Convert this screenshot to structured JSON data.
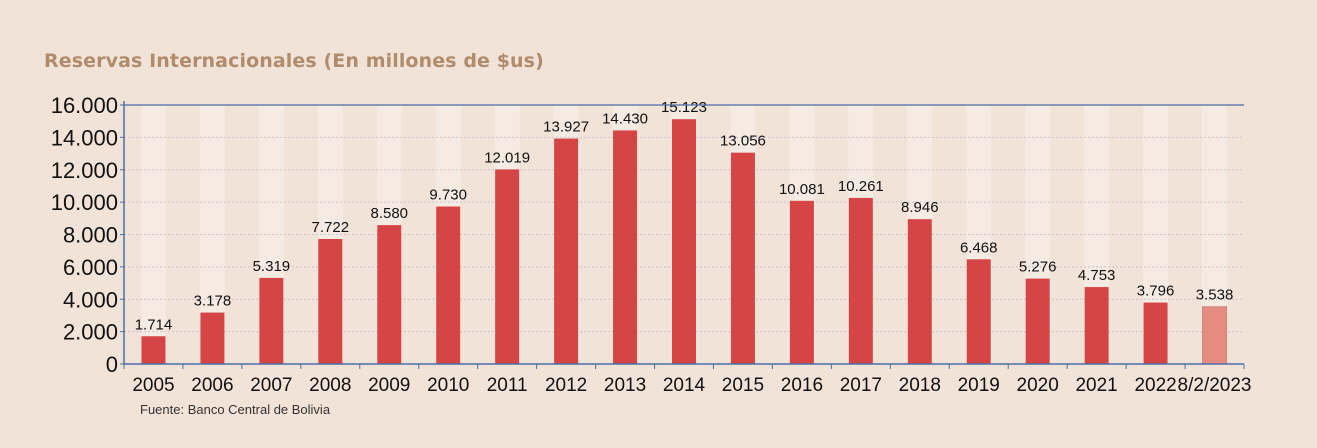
{
  "header": {
    "title": "Reservas Internacionales (En millones de $us)"
  },
  "footer": {
    "source": "Fuente: Banco Central de Bolivia"
  },
  "colors": {
    "bar": "#d64545",
    "bar_highlight": "#e48c80",
    "column_band": "#f5ebe3",
    "gridline": "#c9c3ce",
    "axis": "#4a6fa5",
    "background": "#f2e3d8",
    "title": "#b08c6c"
  },
  "chart_data": {
    "type": "bar",
    "title": "Reservas Internacionales (En millones de $us)",
    "xlabel": "",
    "ylabel": "",
    "categories": [
      "2005",
      "2006",
      "2007",
      "2008",
      "2009",
      "2010",
      "2011",
      "2012",
      "2013",
      "2014",
      "2015",
      "2016",
      "2017",
      "2018",
      "2019",
      "2020",
      "2021",
      "2022",
      "8/2/2023"
    ],
    "values": [
      1714,
      3178,
      5319,
      7722,
      8580,
      9730,
      12019,
      13927,
      14430,
      15123,
      13056,
      10081,
      10261,
      8946,
      6468,
      5276,
      4753,
      3796,
      3538
    ],
    "data_labels": [
      "1.714",
      "3.178",
      "5.319",
      "7.722",
      "8.580",
      "9.730",
      "12.019",
      "13.927",
      "14.430",
      "15.123",
      "13.056",
      "10.081",
      "10.261",
      "8.946",
      "6.468",
      "5.276",
      "4.753",
      "3.796",
      "3.538"
    ],
    "highlight_last": true,
    "ylim": [
      0,
      16000
    ],
    "yticks": [
      0,
      2000,
      4000,
      6000,
      8000,
      10000,
      12000,
      14000,
      16000
    ],
    "ytick_labels": [
      "0",
      "2.000",
      "4.000",
      "6.000",
      "8.000",
      "10.000",
      "12.000",
      "14.000",
      "16.000"
    ],
    "grid": true,
    "legend": "none",
    "source": "Fuente: Banco Central de Bolivia"
  }
}
